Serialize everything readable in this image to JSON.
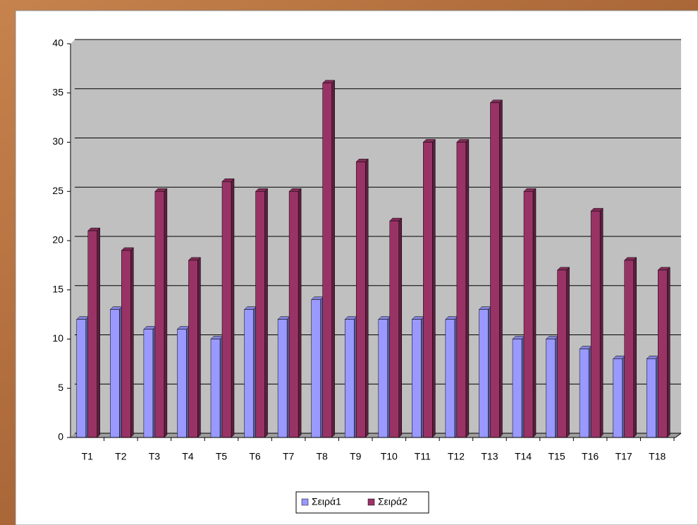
{
  "chart_data": {
    "type": "bar",
    "categories": [
      "T1",
      "T2",
      "T3",
      "T4",
      "T5",
      "T6",
      "T7",
      "T8",
      "T9",
      "T10",
      "T11",
      "T12",
      "T13",
      "T14",
      "T15",
      "T16",
      "T17",
      "T18"
    ],
    "series": [
      {
        "name": "Σειρά1",
        "color": "#9999ff",
        "values": [
          12,
          13,
          11,
          11,
          10,
          13,
          12,
          14,
          12,
          12,
          12,
          12,
          13,
          10,
          10,
          9,
          8,
          8
        ]
      },
      {
        "name": "Σειρά2",
        "color": "#993366",
        "values": [
          21,
          19,
          25,
          18,
          26,
          25,
          25,
          36,
          28,
          22,
          30,
          30,
          34,
          25,
          17,
          23,
          18,
          17
        ]
      }
    ],
    "ylim": [
      0,
      40
    ],
    "yticks": [
      0,
      5,
      10,
      15,
      20,
      25,
      30,
      35,
      40
    ],
    "grid": true,
    "legend": "bottom"
  }
}
